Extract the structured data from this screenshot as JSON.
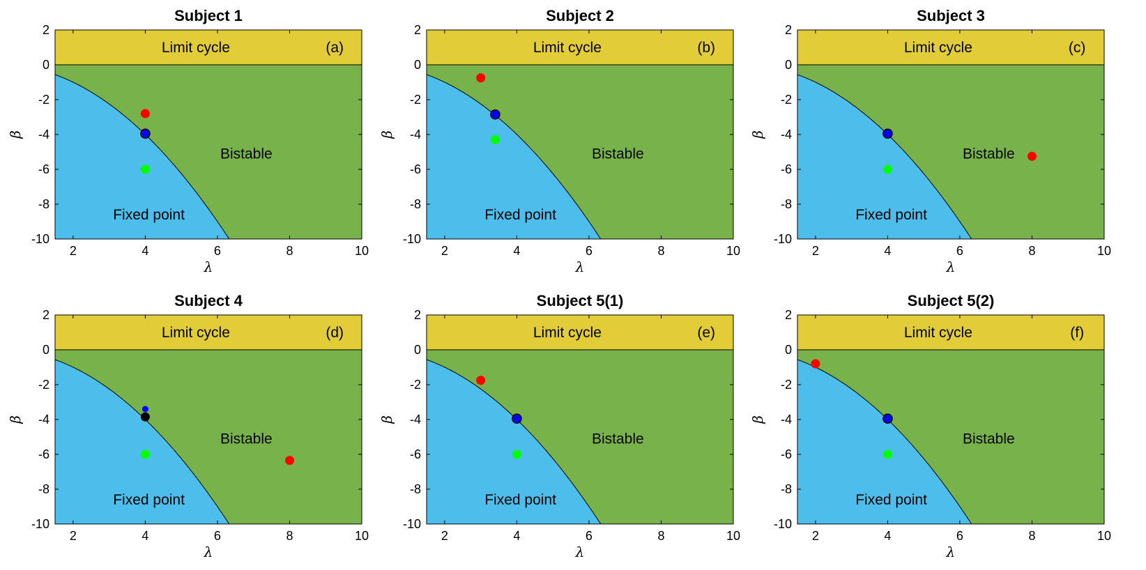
{
  "colors": {
    "limit_cycle": "#E2CC38",
    "bistable": "#77B34A",
    "fixed_point": "#4DBEEB",
    "red": "#FF0000",
    "green": "#00FF00",
    "blue": "#0000FF",
    "black": "#000000"
  },
  "chart_data": [
    {
      "type": "scatter",
      "title": "Subject 1",
      "panel_label": "(a)",
      "xlabel": "λ",
      "ylabel": "β",
      "xlim": [
        1.5,
        10
      ],
      "ylim": [
        -10,
        2
      ],
      "xticks": [
        "2",
        "4",
        "6",
        "8",
        "10"
      ],
      "yticks": [
        "2",
        "0",
        "-2",
        "-4",
        "-6",
        "-8",
        "-10"
      ],
      "regions": [
        "Limit cycle",
        "Bistable",
        "Fixed point"
      ],
      "points": [
        {
          "x": 4,
          "y": -2.8,
          "color": "red"
        },
        {
          "x": 4,
          "y": -3.95,
          "color": "blue",
          "edge": true
        },
        {
          "x": 4,
          "y": -6.0,
          "color": "green"
        }
      ]
    },
    {
      "type": "scatter",
      "title": "Subject 2",
      "panel_label": "(b)",
      "xlabel": "λ",
      "ylabel": "β",
      "xlim": [
        1.5,
        10
      ],
      "ylim": [
        -10,
        2
      ],
      "xticks": [
        "2",
        "4",
        "6",
        "8",
        "10"
      ],
      "yticks": [
        "2",
        "0",
        "-2",
        "-4",
        "-6",
        "-8",
        "-10"
      ],
      "regions": [
        "Limit cycle",
        "Bistable",
        "Fixed point"
      ],
      "points": [
        {
          "x": 3.0,
          "y": -0.75,
          "color": "red"
        },
        {
          "x": 3.4,
          "y": -2.85,
          "color": "blue",
          "edge": true
        },
        {
          "x": 3.4,
          "y": -4.3,
          "color": "green"
        }
      ]
    },
    {
      "type": "scatter",
      "title": "Subject 3",
      "panel_label": "(c)",
      "xlabel": "λ",
      "ylabel": "β",
      "xlim": [
        1.5,
        10
      ],
      "ylim": [
        -10,
        2
      ],
      "xticks": [
        "2",
        "4",
        "6",
        "8",
        "10"
      ],
      "yticks": [
        "2",
        "0",
        "-2",
        "-4",
        "-6",
        "-8",
        "-10"
      ],
      "regions": [
        "Limit cycle",
        "Bistable",
        "Fixed point"
      ],
      "points": [
        {
          "x": 8.0,
          "y": -5.25,
          "color": "red"
        },
        {
          "x": 4,
          "y": -3.95,
          "color": "blue",
          "edge": true
        },
        {
          "x": 4,
          "y": -6.0,
          "color": "green"
        }
      ]
    },
    {
      "type": "scatter",
      "title": "Subject 4",
      "panel_label": "(d)",
      "xlabel": "λ",
      "ylabel": "β",
      "xlim": [
        1.5,
        10
      ],
      "ylim": [
        -10,
        2
      ],
      "xticks": [
        "2",
        "4",
        "6",
        "8",
        "10"
      ],
      "yticks": [
        "2",
        "0",
        "-2",
        "-4",
        "-6",
        "-8",
        "-10"
      ],
      "regions": [
        "Limit cycle",
        "Bistable",
        "Fixed point"
      ],
      "points": [
        {
          "x": 8.0,
          "y": -6.35,
          "color": "red"
        },
        {
          "x": 4,
          "y": -3.4,
          "color": "blue",
          "small": true
        },
        {
          "x": 4,
          "y": -3.85,
          "color": "black"
        },
        {
          "x": 4,
          "y": -6.0,
          "color": "green"
        }
      ]
    },
    {
      "type": "scatter",
      "title": "Subject 5(1)",
      "panel_label": "(e)",
      "xlabel": "λ",
      "ylabel": "β",
      "xlim": [
        1.5,
        10
      ],
      "ylim": [
        -10,
        2
      ],
      "xticks": [
        "2",
        "4",
        "6",
        "8",
        "10"
      ],
      "yticks": [
        "2",
        "0",
        "-2",
        "-4",
        "-6",
        "-8",
        "-10"
      ],
      "regions": [
        "Limit cycle",
        "Bistable",
        "Fixed point"
      ],
      "points": [
        {
          "x": 3.0,
          "y": -1.75,
          "color": "red"
        },
        {
          "x": 4,
          "y": -3.95,
          "color": "blue",
          "edge": true
        },
        {
          "x": 4,
          "y": -6.0,
          "color": "green"
        }
      ]
    },
    {
      "type": "scatter",
      "title": "Subject 5(2)",
      "panel_label": "(f)",
      "xlabel": "λ",
      "ylabel": "β",
      "xlim": [
        1.5,
        10
      ],
      "ylim": [
        -10,
        2
      ],
      "xticks": [
        "2",
        "4",
        "6",
        "8",
        "10"
      ],
      "yticks": [
        "2",
        "0",
        "-2",
        "-4",
        "-6",
        "-8",
        "-10"
      ],
      "regions": [
        "Limit cycle",
        "Bistable",
        "Fixed point"
      ],
      "points": [
        {
          "x": 2.0,
          "y": -0.8,
          "color": "red"
        },
        {
          "x": 4,
          "y": -3.95,
          "color": "blue",
          "edge": true
        },
        {
          "x": 4,
          "y": -6.0,
          "color": "green"
        }
      ]
    }
  ]
}
